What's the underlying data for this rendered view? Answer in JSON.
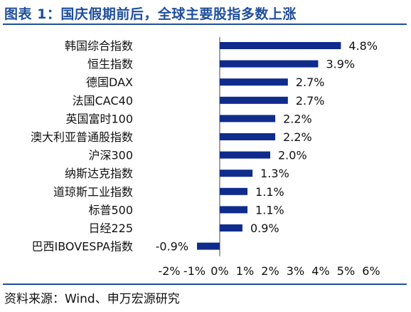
{
  "title": "图表 1：国庆假期前后，全球主要股指多数上涨",
  "source": "资料来源：Wind、申万宏源研究",
  "chart_data": {
    "type": "bar",
    "orientation": "horizontal",
    "categories": [
      "韩国综合指数",
      "恒生指数",
      "德国DAX",
      "法国CAC40",
      "英国富时100",
      "澳大利亚普通股指数",
      "沪深300",
      "纳斯达克指数",
      "道琼斯工业指数",
      "标普500",
      "日经225",
      "巴西IBOVESPA指数"
    ],
    "values": [
      4.8,
      3.9,
      2.7,
      2.7,
      2.2,
      2.2,
      2.0,
      1.3,
      1.1,
      1.1,
      0.9,
      -0.9
    ],
    "data_labels": [
      "4.8%",
      "3.9%",
      "2.7%",
      "2.7%",
      "2.2%",
      "2.2%",
      "2.0%",
      "1.3%",
      "1.1%",
      "1.1%",
      "0.9%",
      "-0.9%"
    ],
    "x_ticks": [
      "-2%",
      "-1%",
      "0%",
      "1%",
      "2%",
      "3%",
      "4%",
      "5%",
      "6%"
    ],
    "xlim": [
      -2,
      6
    ],
    "bar_color": "#0f2b8c",
    "grid": false
  }
}
